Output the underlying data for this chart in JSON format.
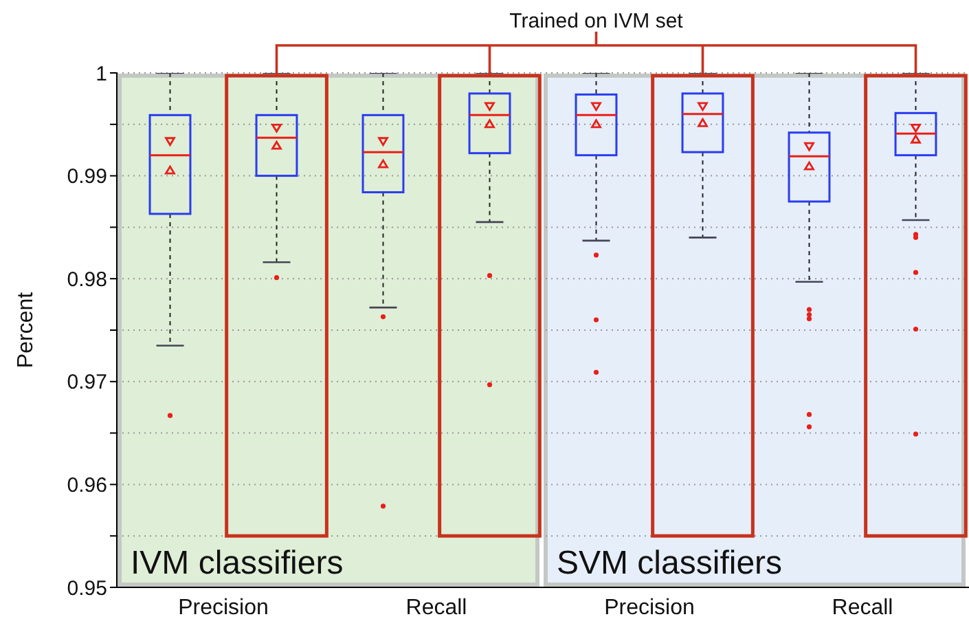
{
  "chart_data": {
    "type": "box",
    "ylabel": "Percent",
    "categories": [
      "Precision",
      "Recall",
      "Precision",
      "Recall"
    ],
    "annotations": [
      "Trained on IVM set",
      "IVM classifiers",
      "SVM classifiers"
    ],
    "ylim": [
      0.95,
      1
    ],
    "yticks": [
      0.95,
      {
        "value": 0.955,
        "label": null
      },
      0.96,
      {
        "value": 0.965,
        "label": null
      },
      0.97,
      {
        "value": 0.975,
        "label": null
      },
      0.98,
      {
        "value": 0.985,
        "label": null
      },
      0.99,
      {
        "value": 0.995,
        "label": null
      },
      {
        "value": 1,
        "label": "1"
      }
    ],
    "grid": "y",
    "series": [
      {
        "type": "box",
        "color": "#2a3cf0",
        "boxes": [
          {
            "low": 0.9735,
            "q1": 0.9863,
            "median": 0.992,
            "q3": 0.9959,
            "high": 1,
            "mean": 0.9905,
            "outliers": [
              0.9667
            ]
          },
          {
            "low": 0.9772,
            "q1": 0.9884,
            "median": 0.9923,
            "q3": 0.9959,
            "high": 1,
            "mean": 0.9911,
            "outliers": [
              0.9763,
              0.9579
            ]
          },
          {
            "low": 0.9837,
            "q1": 0.992,
            "median": 0.9959,
            "q3": 0.9979,
            "high": 1,
            "mean": 0.995,
            "outliers": [
              0.9823,
              0.976,
              0.9709
            ]
          },
          {
            "low": 0.9797,
            "q1": 0.9875,
            "median": 0.9919,
            "q3": 0.9942,
            "high": 1,
            "mean": 0.9909,
            "outliers": [
              0.977,
              0.9765,
              0.9761,
              0.9668,
              0.9656
            ]
          }
        ]
      },
      {
        "type": "box",
        "color": "#2a3cf0",
        "boxes": [
          {
            "low": 0.9816,
            "q1": 0.99,
            "median": 0.9937,
            "q3": 0.9959,
            "high": 1,
            "mean": 0.9929,
            "outliers": [
              0.9801
            ]
          },
          {
            "low": 0.9855,
            "q1": 0.9922,
            "median": 0.9959,
            "q3": 0.998,
            "high": 1,
            "mean": 0.995,
            "outliers": [
              0.9803,
              0.9697
            ]
          },
          {
            "low": 0.984,
            "q1": 0.9923,
            "median": 0.996,
            "q3": 0.998,
            "high": 1,
            "mean": 0.9951
          },
          {
            "low": 0.9857,
            "q1": 0.992,
            "median": 0.9941,
            "q3": 0.9961,
            "high": 1,
            "mean": 0.9935,
            "outliers": [
              0.9843,
              0.984,
              0.9806,
              0.9751,
              0.9649
            ]
          }
        ]
      },
      {
        "type": "scatter",
        "color": "#e8201a",
        "marker": "triangle",
        "values": [
          0.9934,
          0.9934,
          0.9968,
          0.9929
        ]
      },
      {
        "type": "scatter",
        "color": "#e8201a",
        "marker": "triangle",
        "values": [
          0.9947,
          0.9968,
          0.9968,
          0.9947
        ]
      }
    ]
  }
}
